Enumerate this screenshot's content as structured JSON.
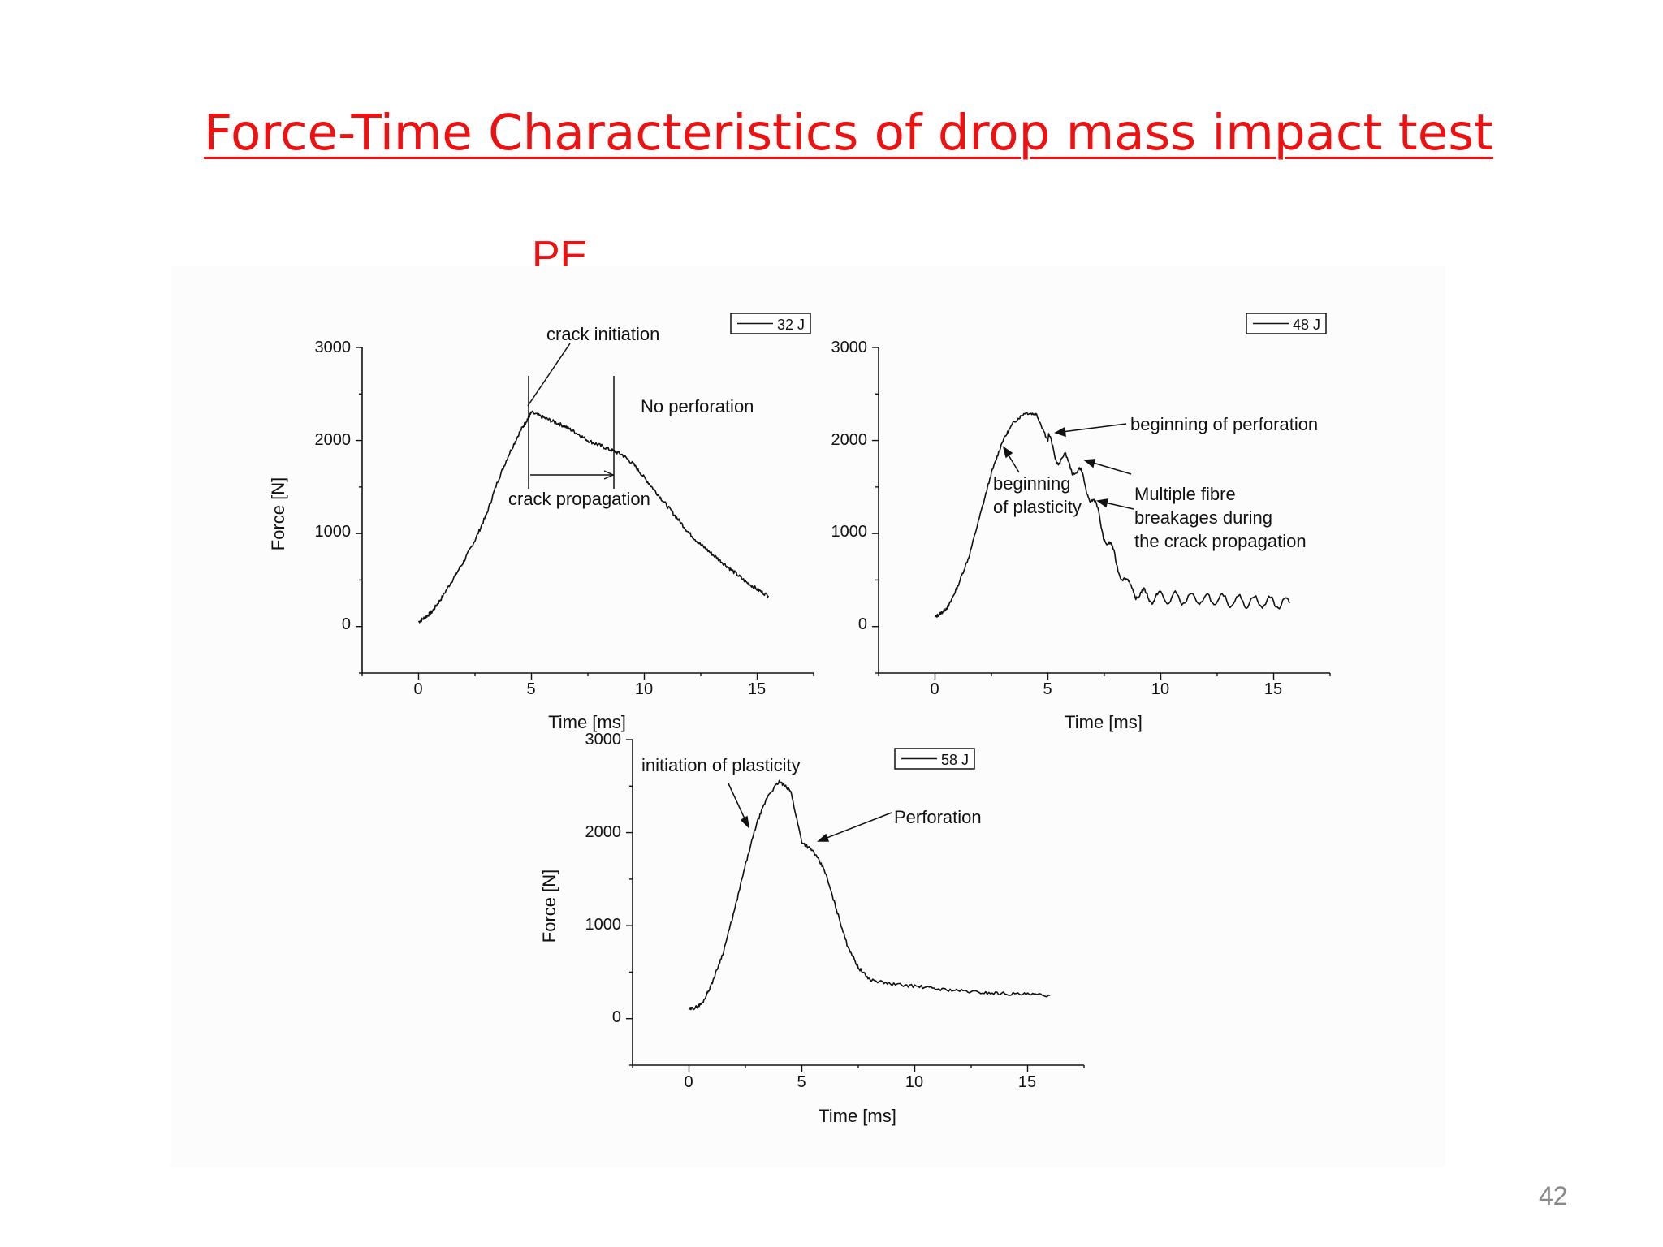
{
  "slide": {
    "title": "Force-Time Characteristics of drop mass impact test",
    "material": "PE",
    "page_number": "42"
  },
  "colors": {
    "title": "#ee1111",
    "line": "#111111",
    "page_number": "#888888"
  },
  "chart_data": [
    {
      "type": "line",
      "legend": "32 J",
      "legend_placement": "top-right",
      "xlabel": "Time [ms]",
      "ylabel": "Force [N]",
      "xticks": [
        "0",
        "5",
        "10",
        "15"
      ],
      "yticks": [
        "0",
        "1000",
        "2000",
        "3000"
      ],
      "xlim": [
        -2.5,
        17.5
      ],
      "ylim": [
        -500,
        3000
      ],
      "grid": false,
      "series": [
        {
          "x": [
            0,
            0.3,
            0.6,
            1.0,
            1.5,
            2.0,
            2.5,
            3.0,
            3.5,
            4.0,
            4.5,
            4.8,
            5.0,
            5.5,
            6.0,
            6.5,
            7.0,
            7.5,
            8.0,
            8.5,
            9.0,
            9.5,
            10.0,
            10.5,
            11.0,
            11.5,
            12.0,
            12.5,
            13.0,
            13.5,
            14.0,
            14.5,
            15.0,
            15.5
          ],
          "y": [
            50,
            100,
            160,
            300,
            500,
            700,
            930,
            1200,
            1560,
            1850,
            2100,
            2220,
            2300,
            2250,
            2200,
            2150,
            2080,
            2000,
            1950,
            1900,
            1850,
            1750,
            1600,
            1450,
            1300,
            1150,
            1000,
            880,
            780,
            680,
            580,
            480,
            400,
            330
          ]
        }
      ],
      "annotations": [
        {
          "text": "crack initiation"
        },
        {
          "text": "No perforation"
        },
        {
          "text": "crack propagation"
        }
      ]
    },
    {
      "type": "line",
      "legend": "48 J",
      "legend_placement": "top-right",
      "xlabel": "Time [ms]",
      "ylabel": "",
      "xticks": [
        "0",
        "5",
        "10",
        "15"
      ],
      "yticks": [
        "0",
        "1000",
        "2000",
        "3000"
      ],
      "xlim": [
        -2.5,
        17.5
      ],
      "ylim": [
        -500,
        3000
      ],
      "grid": false,
      "series": [
        {
          "x": [
            0,
            0.3,
            0.6,
            1.0,
            1.5,
            2.0,
            2.5,
            3.0,
            3.5,
            4.0,
            4.5,
            5.0,
            5.5,
            6.0,
            6.5,
            7.0,
            7.5,
            8.0,
            8.5,
            9.0,
            9.5,
            10.0,
            11.0,
            12.0,
            13.0,
            14.0,
            15.0,
            15.7
          ],
          "y": [
            100,
            150,
            220,
            430,
            750,
            1200,
            1650,
            2000,
            2200,
            2300,
            2280,
            2000,
            1800,
            1750,
            1600,
            1350,
            1000,
            700,
            450,
            350,
            320,
            310,
            300,
            290,
            280,
            270,
            260,
            250
          ]
        }
      ],
      "annotations": [
        {
          "text": "beginning of perforation"
        },
        {
          "text": "beginning"
        },
        {
          "text": "of plasticity"
        },
        {
          "text": "Multiple fibre"
        },
        {
          "text": "breakages during"
        },
        {
          "text": "the crack propagation"
        }
      ]
    },
    {
      "type": "line",
      "legend": "58 J",
      "legend_placement": "top-right",
      "xlabel": "Time [ms]",
      "ylabel": "Force [N]",
      "xticks": [
        "0",
        "5",
        "10",
        "15"
      ],
      "yticks": [
        "0",
        "1000",
        "2000",
        "3000"
      ],
      "xlim": [
        -2.5,
        17.5
      ],
      "ylim": [
        -500,
        3000
      ],
      "grid": false,
      "series": [
        {
          "x": [
            0,
            0.3,
            0.6,
            1.0,
            1.5,
            2.0,
            2.5,
            3.0,
            3.5,
            4.0,
            4.5,
            5.0,
            5.5,
            6.0,
            6.5,
            7.0,
            7.5,
            8.0,
            9.0,
            10.0,
            11.0,
            12.0,
            13.0,
            14.0,
            15.0,
            16.0
          ],
          "y": [
            100,
            120,
            170,
            370,
            700,
            1150,
            1650,
            2100,
            2400,
            2550,
            2450,
            1900,
            1800,
            1600,
            1200,
            800,
            550,
            420,
            370,
            350,
            320,
            300,
            280,
            270,
            260,
            250
          ]
        }
      ],
      "annotations": [
        {
          "text": "initiation of plasticity"
        },
        {
          "text": "Perforation"
        }
      ]
    }
  ]
}
